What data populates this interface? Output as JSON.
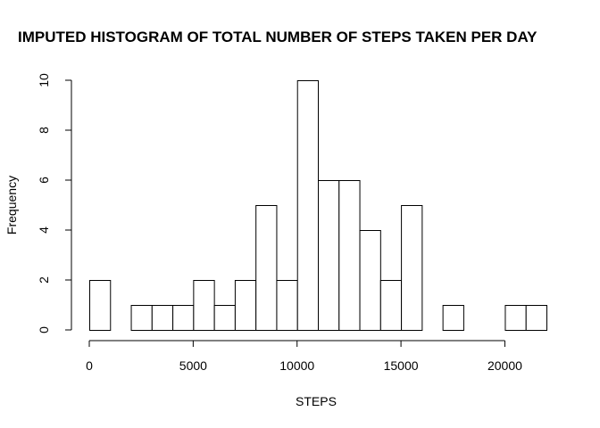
{
  "chart_data": {
    "type": "bar",
    "title": "IMPUTED HISTOGRAM OF TOTAL NUMBER OF STEPS TAKEN PER DAY",
    "xlabel": "STEPS",
    "ylabel": "Frequency",
    "bin_width": 1000,
    "bin_starts": [
      0,
      1000,
      2000,
      3000,
      4000,
      5000,
      6000,
      7000,
      8000,
      9000,
      10000,
      11000,
      12000,
      13000,
      14000,
      15000,
      16000,
      17000,
      18000,
      19000,
      20000,
      21000
    ],
    "values": [
      2,
      0,
      1,
      1,
      1,
      2,
      1,
      2,
      5,
      2,
      10,
      6,
      6,
      4,
      2,
      5,
      0,
      1,
      0,
      0,
      1,
      1
    ],
    "xlim": [
      0,
      22000
    ],
    "ylim": [
      0,
      10
    ],
    "x_ticks": [
      0,
      5000,
      10000,
      15000,
      20000
    ],
    "x_tick_labels": [
      "0",
      "5000",
      "10000",
      "15000",
      "20000"
    ],
    "y_ticks": [
      0,
      2,
      4,
      6,
      8,
      10
    ],
    "y_tick_labels": [
      "0",
      "2",
      "4",
      "6",
      "8",
      "10"
    ],
    "grid": false,
    "colors": {
      "bar_fill": "#ffffff",
      "bar_stroke": "#000000"
    }
  }
}
